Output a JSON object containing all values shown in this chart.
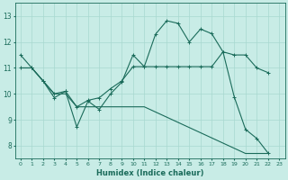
{
  "xlabel": "Humidex (Indice chaleur)",
  "bg_color": "#c8ece6",
  "grid_color": "#a8d8d0",
  "line_color": "#1a6b5a",
  "xlim": [
    -0.5,
    23.5
  ],
  "ylim": [
    7.5,
    13.5
  ],
  "yticks": [
    8,
    9,
    10,
    11,
    12,
    13
  ],
  "line1_x": [
    0,
    1,
    2,
    3,
    4,
    5,
    6,
    7,
    8,
    9,
    10,
    11,
    12,
    13,
    14,
    15,
    16,
    17,
    18,
    19,
    20,
    21,
    22
  ],
  "line1_y": [
    11.5,
    11.0,
    10.5,
    9.85,
    10.1,
    8.72,
    9.72,
    9.4,
    10.0,
    10.45,
    11.5,
    11.05,
    12.3,
    12.82,
    12.72,
    12.0,
    12.5,
    12.32,
    11.62,
    9.88,
    8.63,
    8.28,
    7.72
  ],
  "line2_x": [
    0,
    1,
    2,
    3,
    4,
    5,
    6,
    7,
    8,
    9,
    10,
    11,
    12,
    13,
    14,
    15,
    16,
    17,
    18,
    19,
    20,
    21,
    22
  ],
  "line2_y": [
    11.0,
    11.0,
    10.5,
    10.0,
    10.1,
    9.5,
    9.75,
    9.85,
    10.2,
    10.5,
    11.05,
    11.05,
    11.05,
    11.05,
    11.05,
    11.05,
    11.05,
    11.05,
    11.62,
    11.5,
    11.5,
    11.0,
    10.82
  ],
  "line3_x": [
    0,
    1,
    2,
    3,
    4,
    5,
    6,
    7,
    8,
    9,
    10,
    11,
    12,
    13,
    14,
    15,
    16,
    17,
    18,
    19,
    20,
    21,
    22
  ],
  "line3_y": [
    11.0,
    11.0,
    10.5,
    10.0,
    10.0,
    9.5,
    9.5,
    9.5,
    9.5,
    9.5,
    9.5,
    9.5,
    9.3,
    9.1,
    8.9,
    8.7,
    8.5,
    8.3,
    8.1,
    7.9,
    7.7,
    7.7,
    7.7
  ]
}
